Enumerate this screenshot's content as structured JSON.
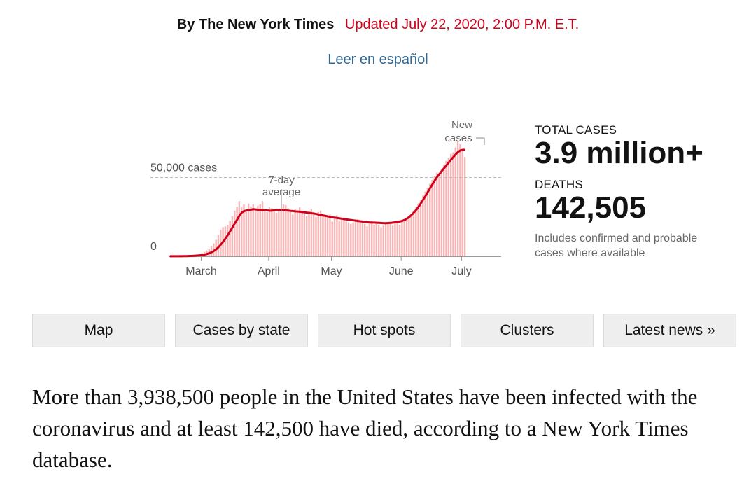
{
  "byline": "By The New York Times",
  "updated": "Updated July 22, 2020, 2:00 P.M. E.T.",
  "language_link": "Leer en español",
  "colors": {
    "accent_red": "#d0021b",
    "bar_fill": "#f4b6b6",
    "link_blue": "#326891",
    "button_bg": "#eeeeee"
  },
  "stats": {
    "total_cases_label": "TOTAL CASES",
    "total_cases_value": "3.9 million+",
    "deaths_label": "DEATHS",
    "deaths_value": "142,505",
    "note": "Includes confirmed and probable cases where available"
  },
  "nav": [
    {
      "label": "Map"
    },
    {
      "label": "Cases by state"
    },
    {
      "label": "Hot spots"
    },
    {
      "label": "Clusters"
    },
    {
      "label": "Latest news »"
    }
  ],
  "lede": "More than 3,938,500 people in the United States have been infected with the coronavirus and at least 142,500 have died, according to a New York Times database.",
  "chart_data": {
    "type": "bar",
    "title": "",
    "xlabel": "",
    "ylabel": "",
    "ylim": [
      0,
      80000
    ],
    "grid": false,
    "x_ticks": [
      "March",
      "April",
      "May",
      "June",
      "July"
    ],
    "y_ticks": [
      {
        "value": 0,
        "label": "0"
      },
      {
        "value": 50000,
        "label": "50,000 cases"
      }
    ],
    "annotations": {
      "bars_label": "New cases",
      "line_label": "7-day average"
    },
    "x_start": "2020-03-01",
    "x_end": "2020-07-21",
    "values": [
      30,
      35,
      60,
      80,
      120,
      160,
      200,
      250,
      320,
      420,
      600,
      800,
      1100,
      1500,
      2000,
      2800,
      3700,
      4800,
      6500,
      8200,
      10500,
      13500,
      17000,
      18500,
      19000,
      20000,
      22500,
      25500,
      29000,
      31500,
      35000,
      31000,
      33000,
      29500,
      33500,
      31500,
      33000,
      30500,
      32000,
      33000,
      35000,
      30000,
      28000,
      31000,
      30500,
      29000,
      27500,
      29000,
      30000,
      33000,
      32500,
      30500,
      28000,
      26500,
      30000,
      27500,
      31000,
      29000,
      27000,
      25500,
      29000,
      30000,
      27500,
      25000,
      28000,
      29000,
      26500,
      25000,
      25500,
      26500,
      22000,
      24000,
      26000,
      22500,
      23000,
      24500,
      22000,
      21500,
      20500,
      21500,
      23000,
      23500,
      21500,
      22000,
      20500,
      19000,
      21000,
      22500,
      20000,
      21500,
      20000,
      18500,
      19500,
      21000,
      21500,
      20500,
      19500,
      22000,
      21500,
      20000,
      22500,
      23500,
      24000,
      25000,
      27000,
      29000,
      31000,
      33500,
      35500,
      38500,
      41000,
      43500,
      46000,
      48500,
      51000,
      53000,
      50500,
      55500,
      58000,
      60500,
      62500,
      65000,
      66000,
      69000,
      73500,
      71000,
      67500,
      63000
    ],
    "moving_average": [
      30,
      33,
      42,
      51,
      65,
      81,
      98,
      127,
      161,
      207,
      279,
      366,
      480,
      630,
      830,
      1100,
      1500,
      1950,
      2600,
      3400,
      4500,
      5900,
      7500,
      9400,
      11400,
      13600,
      16000,
      18500,
      21000,
      23400,
      26000,
      27800,
      28700,
      29100,
      29400,
      29600,
      29900,
      29700,
      29500,
      29300,
      29500,
      29300,
      29100,
      28900,
      29000,
      29200,
      29500,
      29600,
      29500,
      29300,
      29100,
      29000,
      28800,
      28700,
      28500,
      28400,
      28300,
      28100,
      27900,
      27700,
      27500,
      27300,
      27100,
      26800,
      26500,
      26200,
      25900,
      25600,
      25300,
      25000,
      24700,
      24500,
      24300,
      24100,
      23800,
      23600,
      23400,
      23200,
      23000,
      22800,
      22600,
      22400,
      22200,
      22000,
      21800,
      21600,
      21500,
      21400,
      21400,
      21300,
      21200,
      21100,
      21000,
      21000,
      21100,
      21200,
      21400,
      21600,
      21800,
      22100,
      22500,
      23100,
      23900,
      25000,
      26300,
      27800,
      29500,
      31500,
      33700,
      36000,
      38400,
      40900,
      43400,
      45800,
      48200,
      50400,
      52300,
      54200,
      56000,
      57800,
      59600,
      61400,
      63100,
      64800,
      66300,
      67200,
      67600,
      67500
    ]
  }
}
